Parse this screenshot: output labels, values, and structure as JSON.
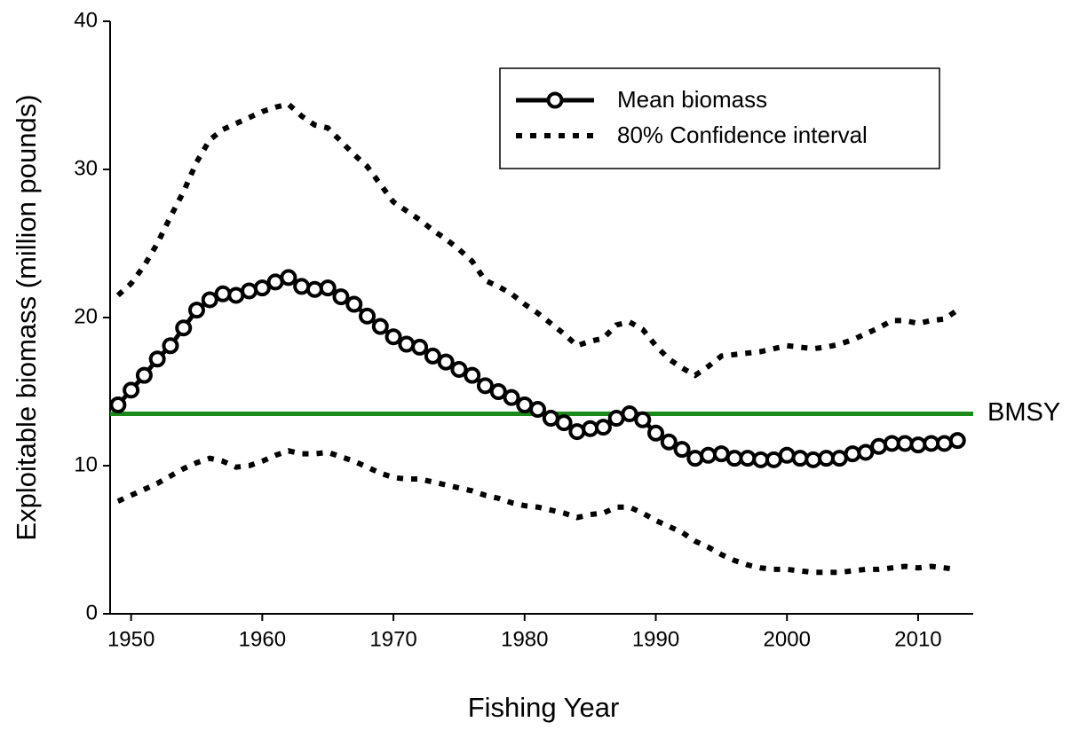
{
  "chart_data": {
    "type": "line",
    "x_label": "Fishing Year",
    "y_label": "Exploitable biomass (million pounds)",
    "x": [
      1949,
      1950,
      1951,
      1952,
      1953,
      1954,
      1955,
      1956,
      1957,
      1958,
      1959,
      1960,
      1961,
      1962,
      1963,
      1964,
      1965,
      1966,
      1967,
      1968,
      1969,
      1970,
      1971,
      1972,
      1973,
      1974,
      1975,
      1976,
      1977,
      1978,
      1979,
      1980,
      1981,
      1982,
      1983,
      1984,
      1985,
      1986,
      1987,
      1988,
      1989,
      1990,
      1991,
      1992,
      1993,
      1994,
      1995,
      1996,
      1997,
      1998,
      1999,
      2000,
      2001,
      2002,
      2003,
      2004,
      2005,
      2006,
      2007,
      2008,
      2009,
      2010,
      2011,
      2012,
      2013
    ],
    "series": [
      {
        "name": "Mean biomass",
        "color": "#000000",
        "values": [
          14.1,
          15.1,
          16.1,
          17.2,
          18.1,
          19.3,
          20.5,
          21.2,
          21.6,
          21.5,
          21.8,
          22.0,
          22.4,
          22.7,
          22.1,
          21.9,
          22.0,
          21.4,
          20.9,
          20.1,
          19.4,
          18.7,
          18.2,
          18.0,
          17.4,
          17.0,
          16.5,
          16.1,
          15.4,
          15.0,
          14.6,
          14.1,
          13.8,
          13.2,
          12.9,
          12.3,
          12.5,
          12.6,
          13.2,
          13.5,
          13.1,
          12.2,
          11.6,
          11.1,
          10.5,
          10.7,
          10.8,
          10.5,
          10.5,
          10.4,
          10.4,
          10.7,
          10.5,
          10.4,
          10.5,
          10.5,
          10.8,
          10.9,
          11.3,
          11.5,
          11.5,
          11.4,
          11.5,
          11.5,
          11.7
        ]
      }
    ],
    "confidence_interval": {
      "name": "80% Confidence interval",
      "color": "#000000",
      "upper": [
        21.5,
        22.3,
        23.5,
        25.0,
        26.8,
        28.5,
        30.5,
        32.0,
        32.7,
        33.1,
        33.5,
        33.9,
        34.2,
        34.4,
        33.6,
        33.0,
        32.8,
        31.9,
        31.0,
        30.2,
        29.0,
        27.8,
        27.2,
        26.6,
        25.9,
        25.3,
        24.6,
        23.8,
        22.5,
        22.1,
        21.6,
        20.9,
        20.3,
        19.6,
        18.9,
        18.1,
        18.4,
        18.6,
        19.5,
        19.7,
        19.2,
        18.1,
        17.2,
        16.6,
        16.1,
        16.7,
        17.4,
        17.5,
        17.6,
        17.7,
        17.9,
        18.1,
        18.0,
        17.9,
        18.0,
        18.2,
        18.5,
        18.9,
        19.3,
        19.8,
        19.8,
        19.6,
        19.8,
        19.9,
        20.5
      ],
      "lower": [
        7.6,
        8.0,
        8.4,
        8.8,
        9.3,
        9.8,
        10.2,
        10.5,
        10.3,
        9.9,
        10.0,
        10.3,
        10.7,
        11.0,
        10.8,
        10.8,
        10.9,
        10.6,
        10.3,
        9.9,
        9.5,
        9.2,
        9.1,
        9.1,
        8.9,
        8.7,
        8.5,
        8.3,
        8.0,
        7.8,
        7.5,
        7.3,
        7.2,
        7.0,
        6.8,
        6.5,
        6.7,
        6.8,
        7.2,
        7.2,
        6.8,
        6.3,
        5.9,
        5.5,
        4.9,
        4.5,
        4.0,
        3.6,
        3.3,
        3.1,
        3.0,
        3.0,
        2.9,
        2.8,
        2.8,
        2.8,
        2.9,
        3.0,
        3.0,
        3.1,
        3.2,
        3.1,
        3.2,
        3.1,
        3.0
      ]
    },
    "reference_line": {
      "label": "BMSY",
      "value": 13.5,
      "color": "#1a8a1a"
    },
    "xlim": [
      1948.4,
      2014.2
    ],
    "xticks": [
      1950,
      1960,
      1970,
      1980,
      1990,
      2000,
      2010
    ],
    "ylim": [
      0,
      40
    ],
    "yticks": [
      0,
      10,
      20,
      30,
      40
    ],
    "grid": false
  }
}
